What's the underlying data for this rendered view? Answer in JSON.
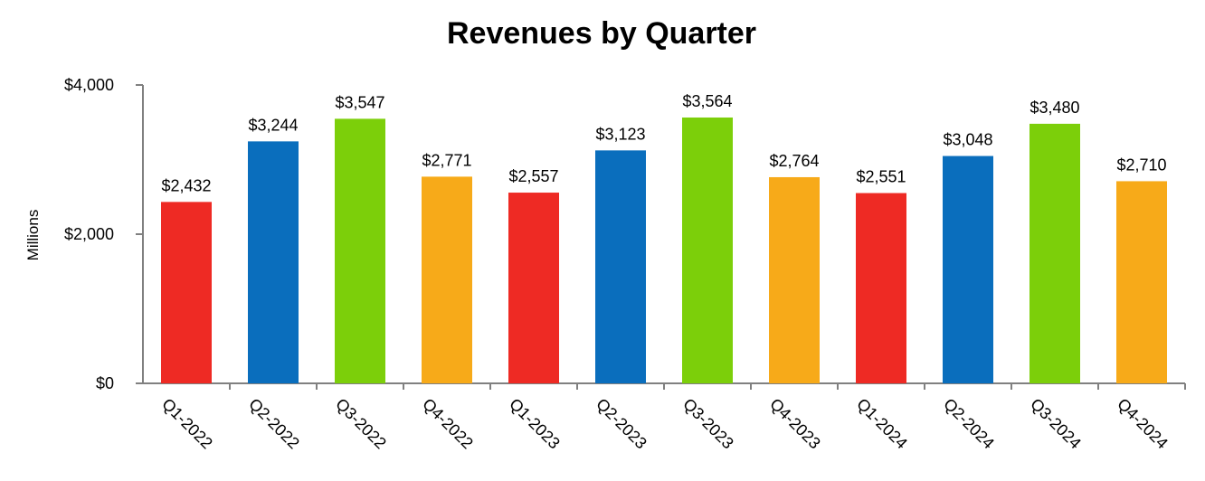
{
  "chart_data": {
    "type": "bar",
    "title": "Revenues by Quarter",
    "xlabel": "",
    "ylabel": "Millions",
    "ylim": [
      0,
      4000
    ],
    "yticks": [
      0,
      2000,
      4000
    ],
    "ytick_labels": [
      "$0",
      "$2,000",
      "$4,000"
    ],
    "grid": false,
    "legend": "none",
    "categories": [
      "Q1-2022",
      "Q2-2022",
      "Q3-2022",
      "Q4-2022",
      "Q1-2023",
      "Q2-2023",
      "Q3-2023",
      "Q4-2023",
      "Q1-2024",
      "Q2-2024",
      "Q3-2024",
      "Q4-2024"
    ],
    "values": [
      2432,
      3244,
      3547,
      2771,
      2557,
      3123,
      3564,
      2764,
      2551,
      3048,
      3480,
      2710
    ],
    "data_labels": [
      "$2,432",
      "$3,244",
      "$3,547",
      "$2,771",
      "$2,557",
      "$3,123",
      "$3,564",
      "$2,764",
      "$2,551",
      "$3,048",
      "$3,480",
      "$2,710"
    ],
    "bar_colors": [
      "#ee2a24",
      "#0a6ebd",
      "#7ccf0a",
      "#f7aa19",
      "#ee2a24",
      "#0a6ebd",
      "#7ccf0a",
      "#f7aa19",
      "#ee2a24",
      "#0a6ebd",
      "#7ccf0a",
      "#f7aa19"
    ],
    "axis_color": "#808080"
  }
}
